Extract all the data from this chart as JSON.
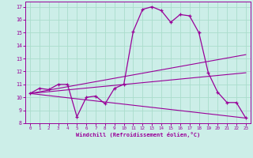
{
  "xlabel": "Windchill (Refroidissement éolien,°C)",
  "background_color": "#cceee8",
  "line_color": "#990099",
  "grid_color": "#aaddcc",
  "xlim": [
    -0.5,
    23.5
  ],
  "ylim": [
    8,
    17.4
  ],
  "xticks": [
    0,
    1,
    2,
    3,
    4,
    5,
    6,
    7,
    8,
    9,
    10,
    11,
    12,
    13,
    14,
    15,
    16,
    17,
    18,
    19,
    20,
    21,
    22,
    23
  ],
  "yticks": [
    8,
    9,
    10,
    11,
    12,
    13,
    14,
    15,
    16,
    17
  ],
  "line1_x": [
    0,
    1,
    2,
    3,
    4,
    5,
    6,
    7,
    8,
    9,
    10,
    11,
    12,
    13,
    14,
    15,
    16,
    17,
    18,
    19,
    20,
    21,
    22,
    23
  ],
  "line1_y": [
    10.3,
    10.7,
    10.6,
    11.0,
    11.0,
    8.5,
    10.0,
    10.1,
    9.5,
    10.7,
    11.0,
    15.1,
    16.8,
    17.0,
    16.7,
    15.8,
    16.4,
    16.3,
    15.0,
    11.9,
    10.4,
    9.6,
    9.6,
    8.4
  ],
  "line2_x": [
    0,
    23
  ],
  "line2_y": [
    10.3,
    13.3
  ],
  "line3_x": [
    0,
    23
  ],
  "line3_y": [
    10.3,
    11.9
  ],
  "line4_x": [
    0,
    23
  ],
  "line4_y": [
    10.3,
    8.4
  ]
}
